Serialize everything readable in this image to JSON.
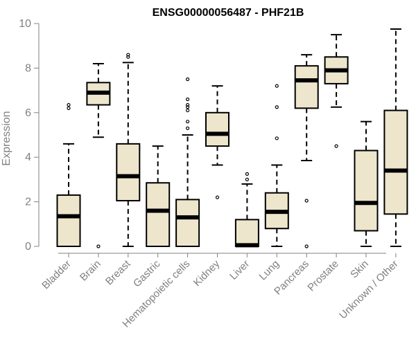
{
  "chart_data": {
    "type": "boxplot",
    "title": "ENSG00000056487 - PHF21B",
    "xlabel": "",
    "ylabel": "Expression",
    "ylim": [
      0,
      10
    ],
    "yticks": [
      0,
      2,
      4,
      6,
      8,
      10
    ],
    "grid": false,
    "box_fill": "#ede6cc",
    "box_stroke": "#000000",
    "axis_color": "#808080",
    "categories": [
      "Bladder",
      "Brain",
      "Breast",
      "Gastric",
      "Hematopoietic cells",
      "Kidney",
      "Liver",
      "Lung",
      "Pancreas",
      "Prostate",
      "Skin",
      "Unknown / Other"
    ],
    "boxes": [
      {
        "q1": 0.0,
        "median": 1.35,
        "q3": 2.3,
        "whisker_low": 0.0,
        "whisker_high": 4.6,
        "outliers": [
          6.2,
          6.35
        ]
      },
      {
        "q1": 6.35,
        "median": 6.9,
        "q3": 7.35,
        "whisker_low": 4.9,
        "whisker_high": 8.2,
        "outliers": [
          0.0
        ]
      },
      {
        "q1": 2.05,
        "median": 3.15,
        "q3": 4.6,
        "whisker_low": 0.0,
        "whisker_high": 8.25,
        "outliers": [
          8.5,
          8.6
        ]
      },
      {
        "q1": 0.0,
        "median": 1.6,
        "q3": 2.85,
        "whisker_low": 0.0,
        "whisker_high": 4.5,
        "outliers": []
      },
      {
        "q1": 0.0,
        "median": 1.3,
        "q3": 2.1,
        "whisker_low": 0.0,
        "whisker_high": 5.0,
        "outliers": [
          5.3,
          5.6,
          6.1,
          6.25,
          6.35,
          6.6,
          7.5
        ]
      },
      {
        "q1": 4.5,
        "median": 5.05,
        "q3": 6.0,
        "whisker_low": 3.65,
        "whisker_high": 7.2,
        "outliers": [
          2.2
        ]
      },
      {
        "q1": 0.0,
        "median": 0.05,
        "q3": 1.2,
        "whisker_low": 0.0,
        "whisker_high": 2.8,
        "outliers": [
          3.0,
          3.25
        ]
      },
      {
        "q1": 0.8,
        "median": 1.55,
        "q3": 2.4,
        "whisker_low": 0.0,
        "whisker_high": 3.65,
        "outliers": [
          4.85,
          6.25,
          7.2
        ]
      },
      {
        "q1": 6.2,
        "median": 7.45,
        "q3": 8.1,
        "whisker_low": 3.85,
        "whisker_high": 8.6,
        "outliers": [
          2.05,
          0.0
        ]
      },
      {
        "q1": 7.3,
        "median": 7.9,
        "q3": 8.5,
        "whisker_low": 6.25,
        "whisker_high": 9.5,
        "outliers": [
          4.5
        ]
      },
      {
        "q1": 0.7,
        "median": 1.95,
        "q3": 4.3,
        "whisker_low": 0.0,
        "whisker_high": 5.6,
        "outliers": []
      },
      {
        "q1": 1.45,
        "median": 3.4,
        "q3": 6.1,
        "whisker_low": 0.0,
        "whisker_high": 9.75,
        "outliers": []
      }
    ]
  }
}
